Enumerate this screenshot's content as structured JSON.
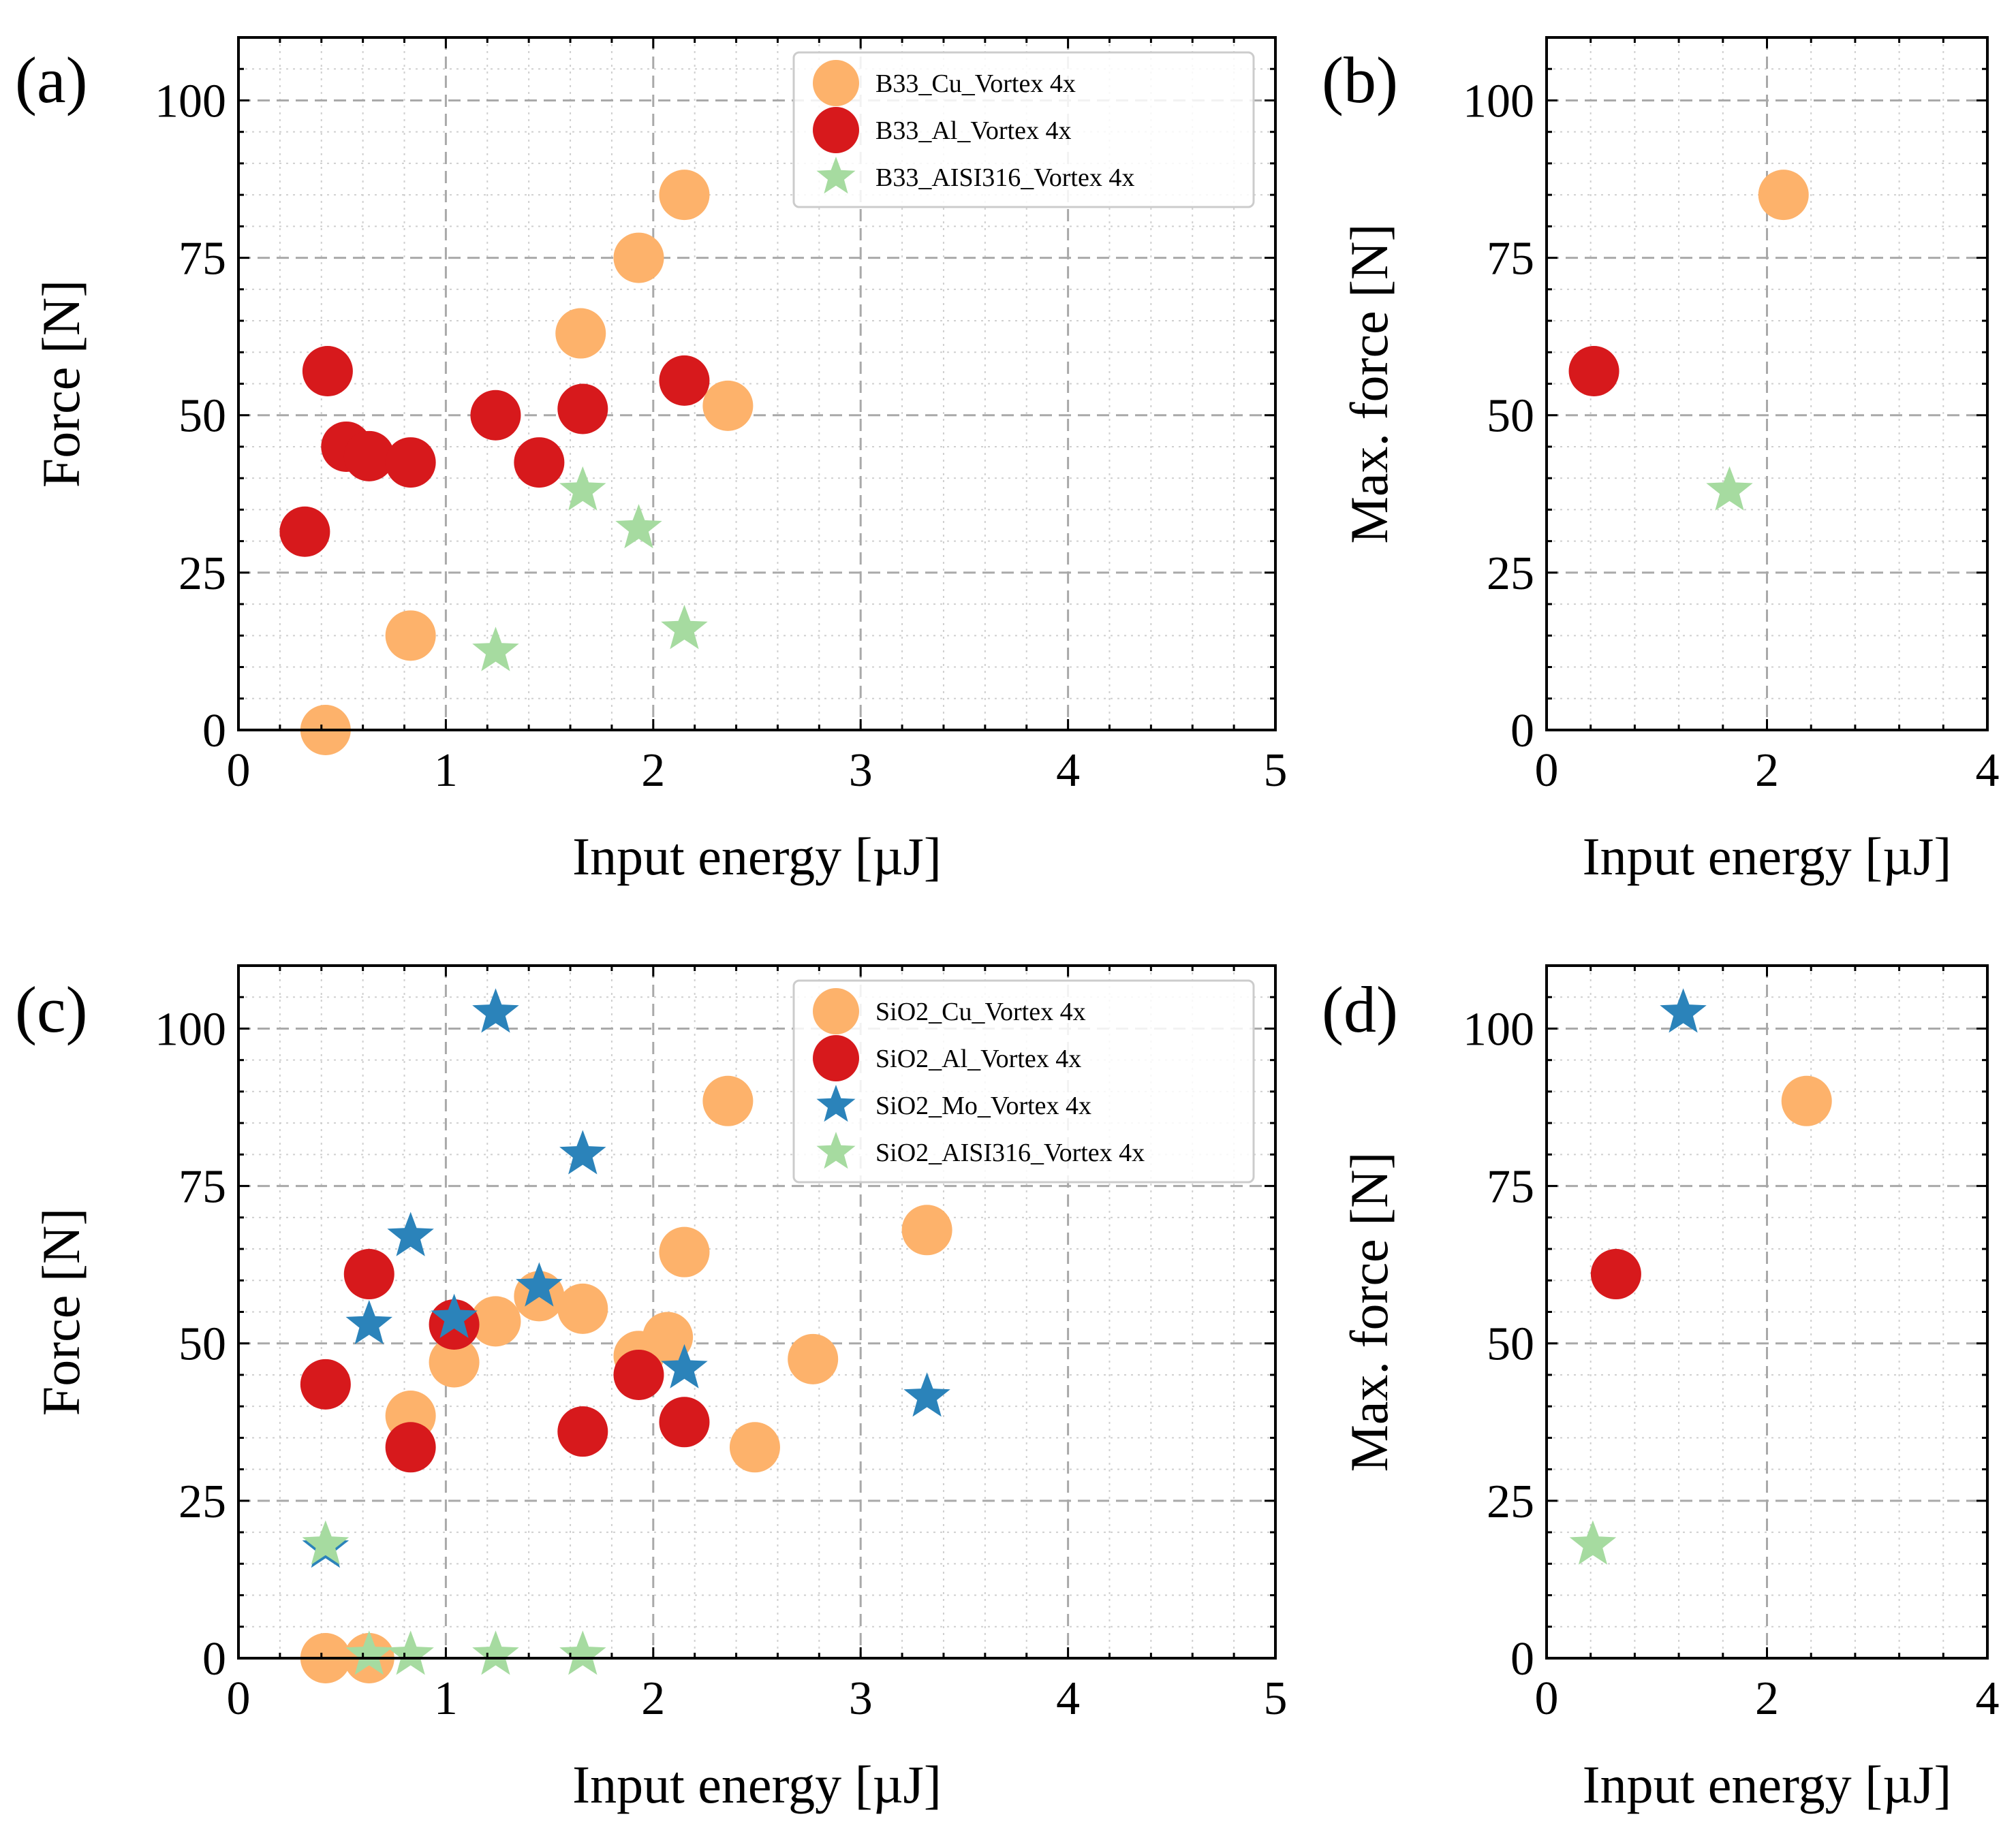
{
  "colors": {
    "orange": "#fdb26b",
    "red": "#d7191c",
    "blue": "#2b83ba",
    "green": "#a6dba0"
  },
  "chart_data": [
    {
      "id": "a",
      "panel_label": "(a)",
      "type": "scatter",
      "xlabel": "Input energy [µJ]",
      "ylabel": "Force [N]",
      "xlim": [
        0,
        5
      ],
      "ylim": [
        0,
        110
      ],
      "xticks": [
        0,
        1,
        2,
        3,
        4,
        5
      ],
      "yticks": [
        0,
        25,
        50,
        75,
        100
      ],
      "grid": true,
      "legend_position": "top-right",
      "series": [
        {
          "name": "B33_Cu_Vortex 4x",
          "marker": "circle",
          "color": "orange",
          "points": [
            [
              0.42,
              0
            ],
            [
              0.83,
              15
            ],
            [
              1.65,
              63
            ],
            [
              1.93,
              75
            ],
            [
              2.15,
              85
            ],
            [
              2.36,
              51.5
            ]
          ]
        },
        {
          "name": "B33_Al_Vortex 4x",
          "marker": "circle",
          "color": "red",
          "points": [
            [
              0.32,
              31.5
            ],
            [
              0.43,
              57
            ],
            [
              0.52,
              45
            ],
            [
              0.63,
              43.5
            ],
            [
              0.83,
              42.5
            ],
            [
              1.24,
              50
            ],
            [
              1.45,
              42.5
            ],
            [
              1.66,
              51
            ],
            [
              2.15,
              55.5
            ]
          ]
        },
        {
          "name": "B33_AISI316_Vortex 4x",
          "marker": "star",
          "color": "green",
          "points": [
            [
              1.24,
              12.5
            ],
            [
              1.66,
              38
            ],
            [
              1.93,
              32
            ],
            [
              2.15,
              16
            ]
          ]
        }
      ]
    },
    {
      "id": "b",
      "panel_label": "(b)",
      "type": "scatter",
      "xlabel": "Input energy [µJ]",
      "ylabel": "Max. force [N]",
      "xlim": [
        0,
        4
      ],
      "ylim": [
        0,
        110
      ],
      "xticks": [
        0,
        2,
        4
      ],
      "yticks": [
        0,
        25,
        50,
        75,
        100
      ],
      "grid": true,
      "series": [
        {
          "name": "B33_Cu_Vortex 4x",
          "marker": "circle",
          "color": "orange",
          "points": [
            [
              2.15,
              85
            ]
          ]
        },
        {
          "name": "B33_Al_Vortex 4x",
          "marker": "circle",
          "color": "red",
          "points": [
            [
              0.43,
              57
            ]
          ]
        },
        {
          "name": "B33_AISI316_Vortex 4x",
          "marker": "star",
          "color": "green",
          "points": [
            [
              1.66,
              38
            ]
          ]
        }
      ]
    },
    {
      "id": "c",
      "panel_label": "(c)",
      "type": "scatter",
      "xlabel": "Input energy [µJ]",
      "ylabel": "Force [N]",
      "xlim": [
        0,
        5
      ],
      "ylim": [
        0,
        110
      ],
      "xticks": [
        0,
        1,
        2,
        3,
        4,
        5
      ],
      "yticks": [
        0,
        25,
        50,
        75,
        100
      ],
      "grid": true,
      "legend_position": "top-right",
      "series": [
        {
          "name": "SiO2_Cu_Vortex 4x",
          "marker": "circle",
          "color": "orange",
          "points": [
            [
              0.42,
              0
            ],
            [
              0.63,
              0
            ],
            [
              0.83,
              38.5
            ],
            [
              1.04,
              47
            ],
            [
              1.24,
              53.5
            ],
            [
              1.45,
              57.5
            ],
            [
              1.66,
              55.5
            ],
            [
              1.93,
              48
            ],
            [
              2.07,
              51
            ],
            [
              2.15,
              64.5
            ],
            [
              2.36,
              88.5
            ],
            [
              2.49,
              33.5
            ],
            [
              2.77,
              47.5
            ],
            [
              3.32,
              68
            ]
          ]
        },
        {
          "name": "SiO2_Al_Vortex 4x",
          "marker": "circle",
          "color": "red",
          "points": [
            [
              0.42,
              43.5
            ],
            [
              0.63,
              61
            ],
            [
              0.83,
              33.5
            ],
            [
              1.04,
              53
            ],
            [
              1.66,
              36
            ],
            [
              1.93,
              45
            ],
            [
              2.15,
              37.5
            ]
          ]
        },
        {
          "name": "SiO2_Mo_Vortex 4x",
          "marker": "star",
          "color": "blue",
          "points": [
            [
              0.42,
              17.5
            ],
            [
              0.63,
              53
            ],
            [
              0.83,
              67
            ],
            [
              1.04,
              54
            ],
            [
              1.24,
              102.5
            ],
            [
              1.45,
              59
            ],
            [
              1.66,
              80
            ],
            [
              2.15,
              46
            ],
            [
              3.32,
              41.5
            ]
          ]
        },
        {
          "name": "SiO2_AISI316_Vortex 4x",
          "marker": "star",
          "color": "green",
          "points": [
            [
              0.42,
              18
            ],
            [
              0.63,
              0.5
            ],
            [
              0.83,
              0.5
            ],
            [
              1.24,
              0.5
            ],
            [
              1.66,
              0.5
            ]
          ]
        }
      ]
    },
    {
      "id": "d",
      "panel_label": "(d)",
      "type": "scatter",
      "xlabel": "Input energy [µJ]",
      "ylabel": "Max. force [N]",
      "xlim": [
        0,
        4
      ],
      "ylim": [
        0,
        110
      ],
      "xticks": [
        0,
        2,
        4
      ],
      "yticks": [
        0,
        25,
        50,
        75,
        100
      ],
      "grid": true,
      "series": [
        {
          "name": "SiO2_Mo_Vortex 4x",
          "marker": "star",
          "color": "blue",
          "points": [
            [
              1.24,
              102.5
            ]
          ]
        },
        {
          "name": "SiO2_Cu_Vortex 4x",
          "marker": "circle",
          "color": "orange",
          "points": [
            [
              2.36,
              88.5
            ]
          ]
        },
        {
          "name": "SiO2_Al_Vortex 4x",
          "marker": "circle",
          "color": "red",
          "points": [
            [
              0.63,
              61
            ]
          ]
        },
        {
          "name": "SiO2_AISI316_Vortex 4x",
          "marker": "star",
          "color": "green",
          "points": [
            [
              0.42,
              18
            ]
          ]
        }
      ]
    }
  ]
}
